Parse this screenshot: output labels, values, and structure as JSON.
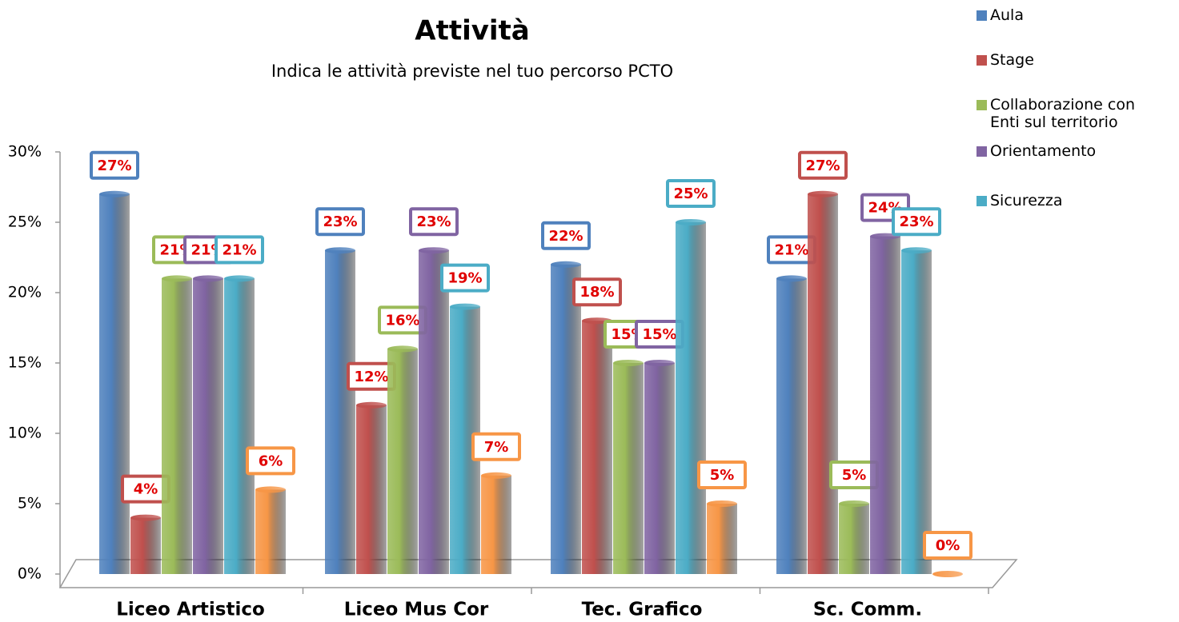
{
  "chart_data": {
    "type": "bar",
    "title": "Attività",
    "subtitle": "Indica le attività previste nel tuo percorso PCTO",
    "categories": [
      "Liceo Artistico",
      "Liceo Mus Cor",
      "Tec. Grafico",
      "Sc. Comm."
    ],
    "series": [
      {
        "name": "Aula",
        "color": "#4f81bd",
        "values": [
          27,
          23,
          22,
          21
        ],
        "value_labels": [
          "27%",
          "23%",
          "22%",
          "21%"
        ]
      },
      {
        "name": "Stage",
        "color": "#c0504d",
        "values": [
          4,
          12,
          18,
          27
        ],
        "value_labels": [
          "4%",
          "12%",
          "18%",
          "27%"
        ]
      },
      {
        "name": "Collaborazione con Enti sul territorio",
        "color": "#9bbb59",
        "values": [
          21,
          16,
          15,
          5
        ],
        "value_labels": [
          "21%",
          "16%",
          "15%",
          "5%"
        ]
      },
      {
        "name": "Orientamento",
        "color": "#8064a2",
        "values": [
          21,
          23,
          15,
          24
        ],
        "value_labels": [
          "21%",
          "23%",
          "15%",
          "24%"
        ]
      },
      {
        "name": "Sicurezza",
        "color": "#4bacc6",
        "values": [
          21,
          19,
          25,
          23
        ],
        "value_labels": [
          "21%",
          "19%",
          "25%",
          "23%"
        ]
      },
      {
        "color": "#f79646",
        "values": [
          6,
          7,
          5,
          0
        ],
        "value_labels": [
          "6%",
          "7%",
          "5%",
          "0%"
        ]
      }
    ],
    "ylim": [
      0,
      30
    ],
    "yticks": [
      {
        "value": 0,
        "label": "0%"
      },
      {
        "value": 5,
        "label": "5%"
      },
      {
        "value": 10,
        "label": "10%"
      },
      {
        "value": 15,
        "label": "15%"
      },
      {
        "value": 20,
        "label": "20%"
      },
      {
        "value": 25,
        "label": "25%"
      },
      {
        "value": 30,
        "label": "30%"
      }
    ],
    "legend": "top-right"
  }
}
